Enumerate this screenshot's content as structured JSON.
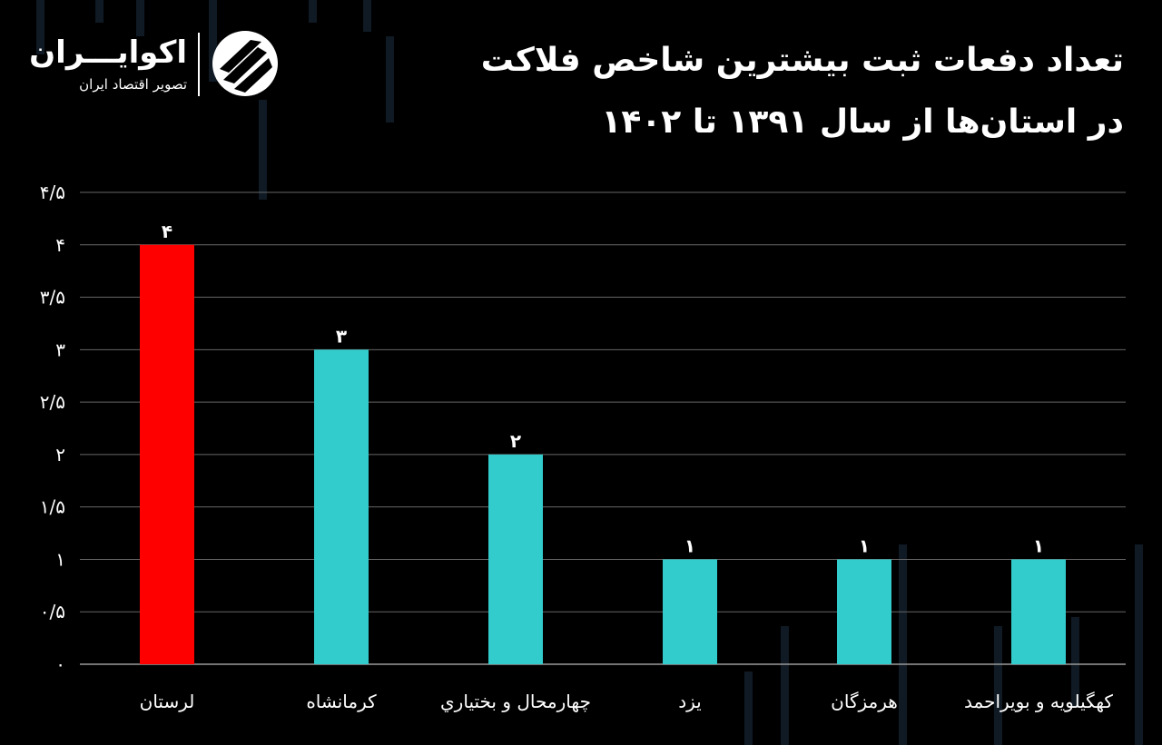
{
  "title": {
    "line1": "تعداد دفعات ثبت بیشترین شاخص فلاکت",
    "line2": "در استان‌ها از سال ۱۳۹۱ تا ۱۴۰۲"
  },
  "brand": {
    "name": "اکوایـــران",
    "tagline": "تصویر اقتصاد ایران",
    "logo_icon": "ekoiran-logo-icon"
  },
  "colors": {
    "background": "#000000",
    "highlight_bar": "#ff0000",
    "bar": "#33cccc",
    "grid": "#666666",
    "text": "#ffffff"
  },
  "chart_data": {
    "type": "bar",
    "categories": [
      "لرستان",
      "کرمانشاه",
      "چهارمحال و بختياري",
      "یزد",
      "هرمزگان",
      "کهگیلویه و بویراحمد"
    ],
    "values": [
      4,
      3,
      2,
      1,
      1,
      1
    ],
    "value_labels": [
      "۴",
      "۳",
      "۲",
      "۱",
      "۱",
      "۱"
    ],
    "highlight_index": 0,
    "ylim": [
      0,
      4.5
    ],
    "yticks": [
      0,
      0.5,
      1,
      1.5,
      2,
      2.5,
      3,
      3.5,
      4,
      4.5
    ],
    "ytick_labels": [
      "۰",
      "۰/۵",
      "۱",
      "۱/۵",
      "۲",
      "۲/۵",
      "۳",
      "۳/۵",
      "۴",
      "۴/۵"
    ],
    "grid": true,
    "title": "",
    "xlabel": "",
    "ylabel": ""
  }
}
